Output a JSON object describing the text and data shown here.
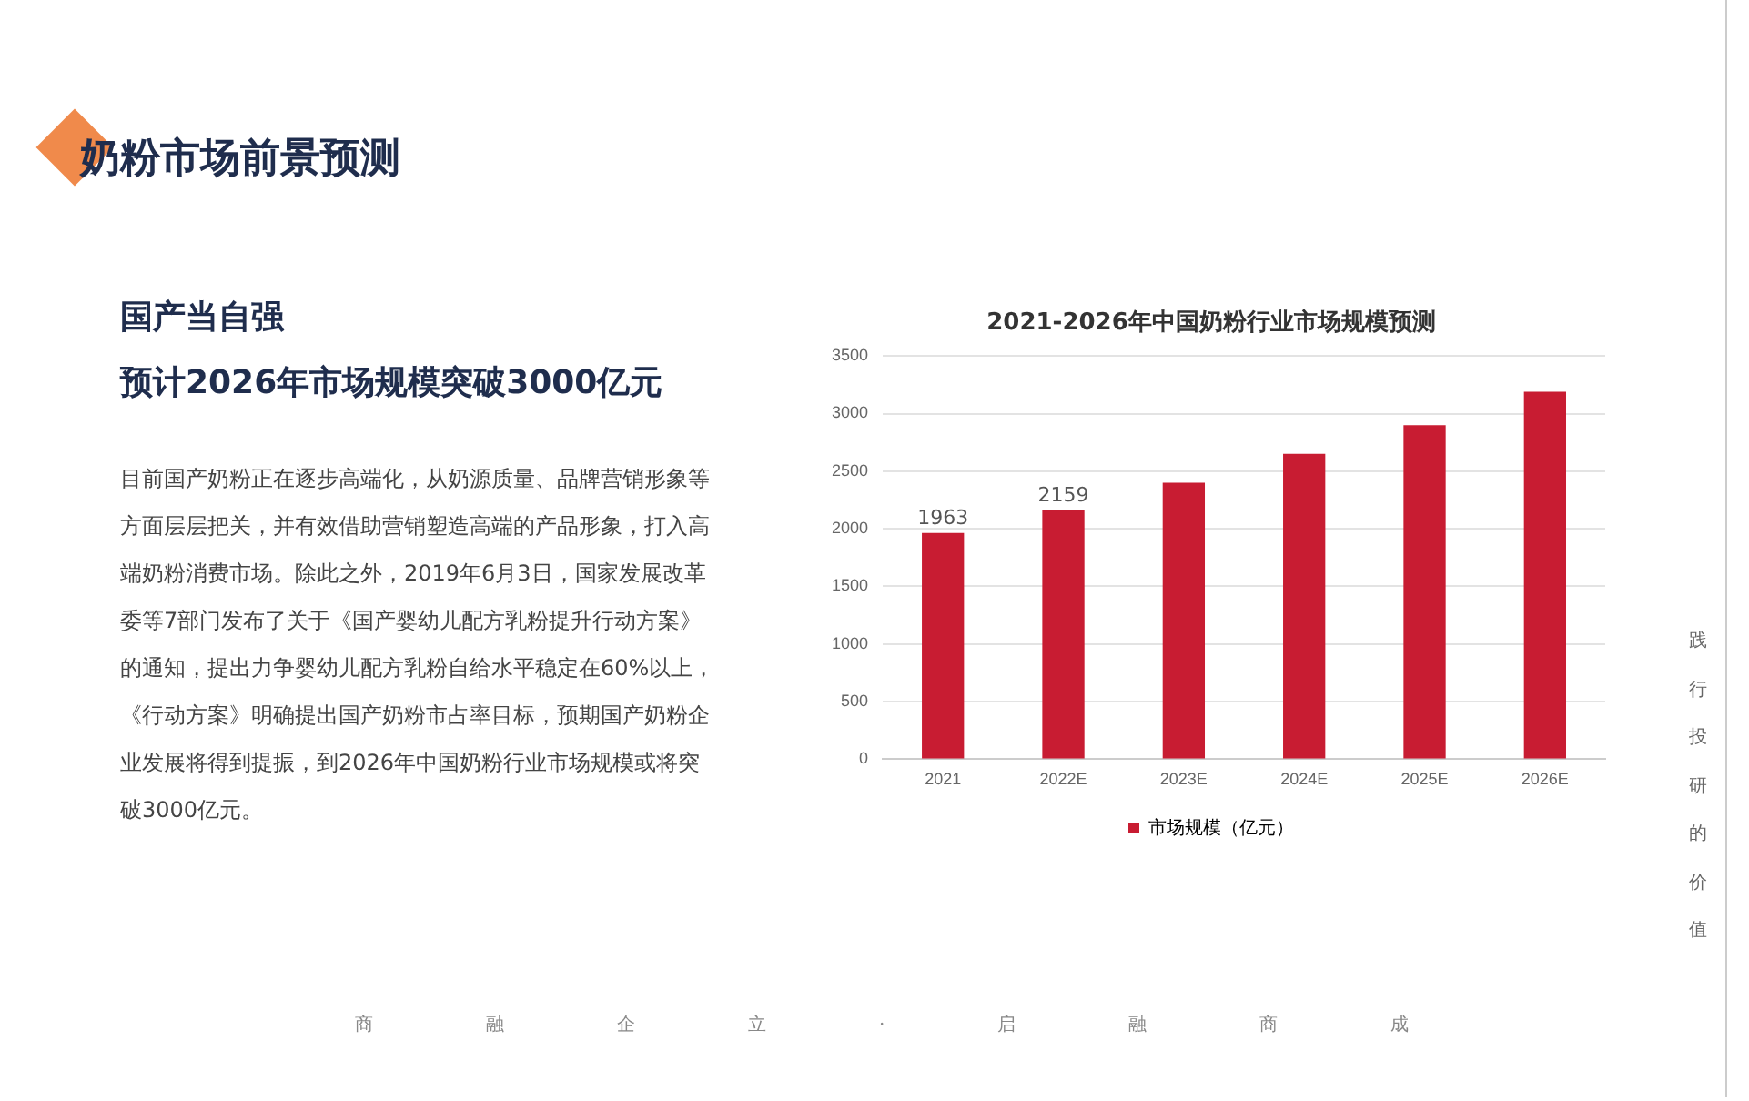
{
  "chart_data": {
    "type": "bar",
    "title": "2021-2026年中国奶粉行业市场规模预测",
    "categories": [
      "2021",
      "2022E",
      "2023E",
      "2024E",
      "2025E",
      "2026E"
    ],
    "series": [
      {
        "name": "市场规模（亿元）",
        "color": "#c81c32",
        "values": [
          1963,
          2159,
          2400,
          2650,
          2900,
          3190
        ],
        "value_labels": [
          "1963",
          "2159",
          null,
          null,
          null,
          null
        ]
      }
    ],
    "ylim": [
      0,
      3500
    ],
    "yticks": [
      0,
      500,
      1000,
      1500,
      2000,
      2500,
      3000,
      3500
    ],
    "grid": "y",
    "legend": "bottom",
    "annotations": [
      "奶粉市场前景预测",
      "国产当自强",
      "预计2026年市场规模突破3000亿元",
      "目前国产奶粉正在逐步高端化，从奶源质量、品牌营销形象等方面层层把关，并有效借助营销塑造高端的产品形象，打入高端奶粉消费市场。除此之外，2019年6月3日，国家发展改革委等7部门发布了关于《国产婴幼儿配方乳粉提升行动方案》的通知，提出力争婴幼儿配方乳粉自给水平稳定在60%以上，《行动方案》明确提出国产奶粉市占率目标，预期国产奶粉企业发展将得到提振，到2026年中国奶粉行业市场规模或将突破3000亿元。",
      "践行投研的价值",
      "商融企立·启融商成"
    ]
  }
}
